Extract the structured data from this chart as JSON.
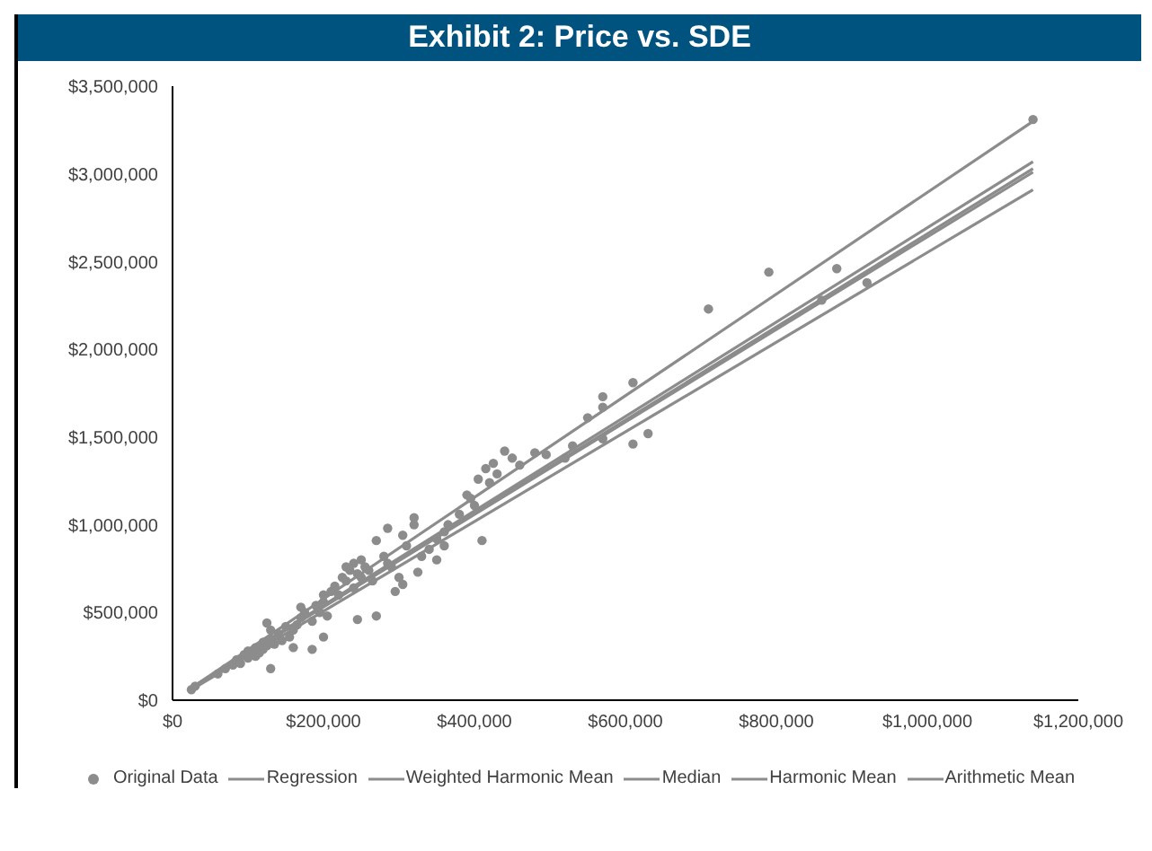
{
  "chart_data": {
    "type": "scatter",
    "title": "Exhibit 2: Price vs. SDE",
    "xlim": [
      0,
      1200000
    ],
    "xticks": [
      {
        "value": 0,
        "label": "$0"
      },
      {
        "value": 200000,
        "label": "$200,000"
      },
      {
        "value": 400000,
        "label": "$400,000"
      },
      {
        "value": 600000,
        "label": "$600,000"
      },
      {
        "value": 800000,
        "label": "$800,000"
      },
      {
        "value": 1000000,
        "label": "$1,000,000"
      },
      {
        "value": 1200000,
        "label": "$1,200,000"
      }
    ],
    "ylim": [
      0,
      3500000
    ],
    "yticks": [
      {
        "value": 0,
        "label": "$0"
      },
      {
        "value": 500000,
        "label": "$500,000"
      },
      {
        "value": 1000000,
        "label": "$1,000,000"
      },
      {
        "value": 1500000,
        "label": "$1,500,000"
      },
      {
        "value": 2000000,
        "label": "$2,000,000"
      },
      {
        "value": 2500000,
        "label": "$2,500,000"
      },
      {
        "value": 3000000,
        "label": "$3,000,000"
      },
      {
        "value": 3500000,
        "label": "$3,500,000"
      }
    ],
    "grid": false,
    "legend": "bottom",
    "series": [
      {
        "name": "Original Data",
        "type": "scatter",
        "marker": "circle",
        "color": "#8c8c8c",
        "x": [
          25000,
          30000,
          60000,
          70000,
          80000,
          85000,
          90000,
          95000,
          100000,
          100000,
          110000,
          110000,
          115000,
          120000,
          120000,
          125000,
          130000,
          130000,
          130000,
          135000,
          140000,
          125000,
          145000,
          150000,
          155000,
          160000,
          160000,
          165000,
          170000,
          185000,
          175000,
          170000,
          185000,
          190000,
          195000,
          200000,
          200000,
          205000,
          210000,
          200000,
          215000,
          220000,
          225000,
          230000,
          230000,
          235000,
          240000,
          240000,
          245000,
          250000,
          250000,
          255000,
          260000,
          265000,
          245000,
          270000,
          270000,
          280000,
          285000,
          290000,
          300000,
          285000,
          305000,
          310000,
          320000,
          320000,
          295000,
          305000,
          330000,
          340000,
          325000,
          350000,
          360000,
          360000,
          365000,
          350000,
          380000,
          390000,
          395000,
          400000,
          405000,
          410000,
          415000,
          420000,
          425000,
          430000,
          440000,
          450000,
          460000,
          480000,
          495000,
          530000,
          520000,
          550000,
          570000,
          570000,
          610000,
          610000,
          630000,
          570000,
          710000,
          790000,
          920000,
          860000,
          880000,
          1140000
        ],
        "values": [
          60000,
          80000,
          150000,
          180000,
          200000,
          230000,
          210000,
          260000,
          280000,
          240000,
          300000,
          250000,
          270000,
          330000,
          290000,
          310000,
          180000,
          350000,
          400000,
          320000,
          380000,
          440000,
          340000,
          420000,
          360000,
          400000,
          300000,
          430000,
          470000,
          290000,
          500000,
          530000,
          450000,
          540000,
          500000,
          560000,
          600000,
          480000,
          620000,
          360000,
          650000,
          600000,
          700000,
          680000,
          760000,
          740000,
          640000,
          780000,
          720000,
          700000,
          800000,
          760000,
          740000,
          680000,
          460000,
          480000,
          910000,
          820000,
          780000,
          760000,
          700000,
          980000,
          940000,
          880000,
          1040000,
          1000000,
          620000,
          660000,
          820000,
          860000,
          730000,
          920000,
          880000,
          960000,
          1000000,
          800000,
          1060000,
          1170000,
          1150000,
          1110000,
          1260000,
          910000,
          1320000,
          1240000,
          1350000,
          1290000,
          1420000,
          1380000,
          1340000,
          1410000,
          1400000,
          1450000,
          1380000,
          1610000,
          1730000,
          1670000,
          1810000,
          1460000,
          1520000,
          1490000,
          2230000,
          2440000,
          2380000,
          2280000,
          2460000,
          3310000
        ]
      },
      {
        "name": "Regression",
        "type": "line",
        "marker": "none",
        "color": "#8c8c8c",
        "x": [
          25000,
          1140000
        ],
        "values": [
          70000,
          3070000
        ]
      },
      {
        "name": "Weighted Harmonic Mean",
        "type": "line",
        "marker": "none",
        "color": "#8c8c8c",
        "x": [
          25000,
          1140000
        ],
        "values": [
          70000,
          3030000
        ]
      },
      {
        "name": "Median",
        "type": "line",
        "marker": "none",
        "color": "#8c8c8c",
        "x": [
          25000,
          1140000
        ],
        "values": [
          70000,
          3010000
        ]
      },
      {
        "name": "Harmonic Mean",
        "type": "line",
        "marker": "none",
        "color": "#8c8c8c",
        "x": [
          25000,
          1140000
        ],
        "values": [
          60000,
          2910000
        ]
      },
      {
        "name": "Arithmetic Mean",
        "type": "line",
        "marker": "none",
        "color": "#8c8c8c",
        "x": [
          25000,
          1140000
        ],
        "values": [
          70000,
          3300000
        ]
      }
    ]
  }
}
